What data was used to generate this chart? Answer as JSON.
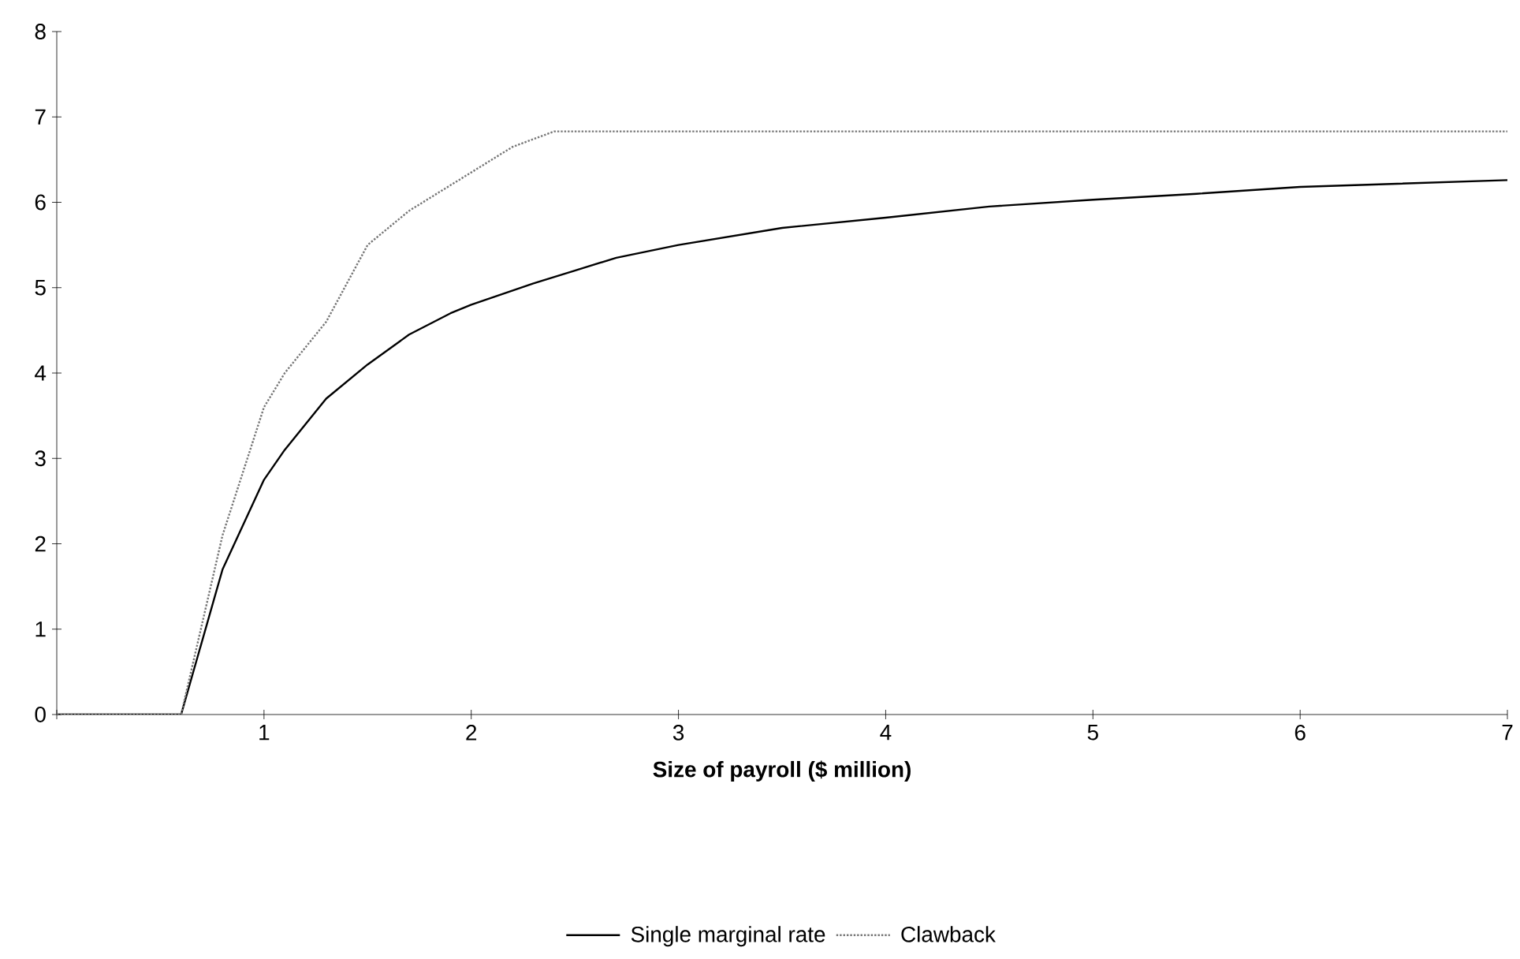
{
  "chart_data": {
    "type": "line",
    "xlabel": "Size of payroll ($ million)",
    "xlim": [
      0,
      7
    ],
    "xticks": [
      {
        "value": 0,
        "label": null
      },
      1,
      2,
      3,
      4,
      5,
      6,
      7
    ],
    "ylim": [
      0,
      8
    ],
    "yticks": [
      0,
      1,
      2,
      3,
      4,
      5,
      6,
      7,
      8
    ],
    "grid": false,
    "legend": "bottom",
    "marker": "none",
    "series": [
      {
        "name": "Single marginal rate",
        "color": "#000000",
        "line_style": "solid",
        "x": [
          0,
          0.6,
          0.8,
          1.0,
          1.1,
          1.3,
          1.5,
          1.7,
          1.9,
          2.0,
          2.3,
          2.5,
          2.7,
          3.0,
          3.5,
          4.0,
          4.5,
          5.0,
          5.5,
          6.0,
          6.5,
          7.0
        ],
        "values": [
          0,
          0,
          1.7,
          2.75,
          3.1,
          3.7,
          4.1,
          4.45,
          4.7,
          4.8,
          5.05,
          5.2,
          5.35,
          5.5,
          5.7,
          5.82,
          5.95,
          6.03,
          6.1,
          6.18,
          6.22,
          6.26
        ]
      },
      {
        "name": "Clawback",
        "color": "#777777",
        "line_style": "dotted",
        "x": [
          0,
          0.6,
          0.8,
          1.0,
          1.1,
          1.3,
          1.5,
          1.7,
          2.0,
          2.2,
          2.4,
          7.0
        ],
        "values": [
          0,
          0,
          2.1,
          3.6,
          4.0,
          4.6,
          5.5,
          5.9,
          6.35,
          6.65,
          6.83,
          6.83
        ]
      }
    ]
  }
}
